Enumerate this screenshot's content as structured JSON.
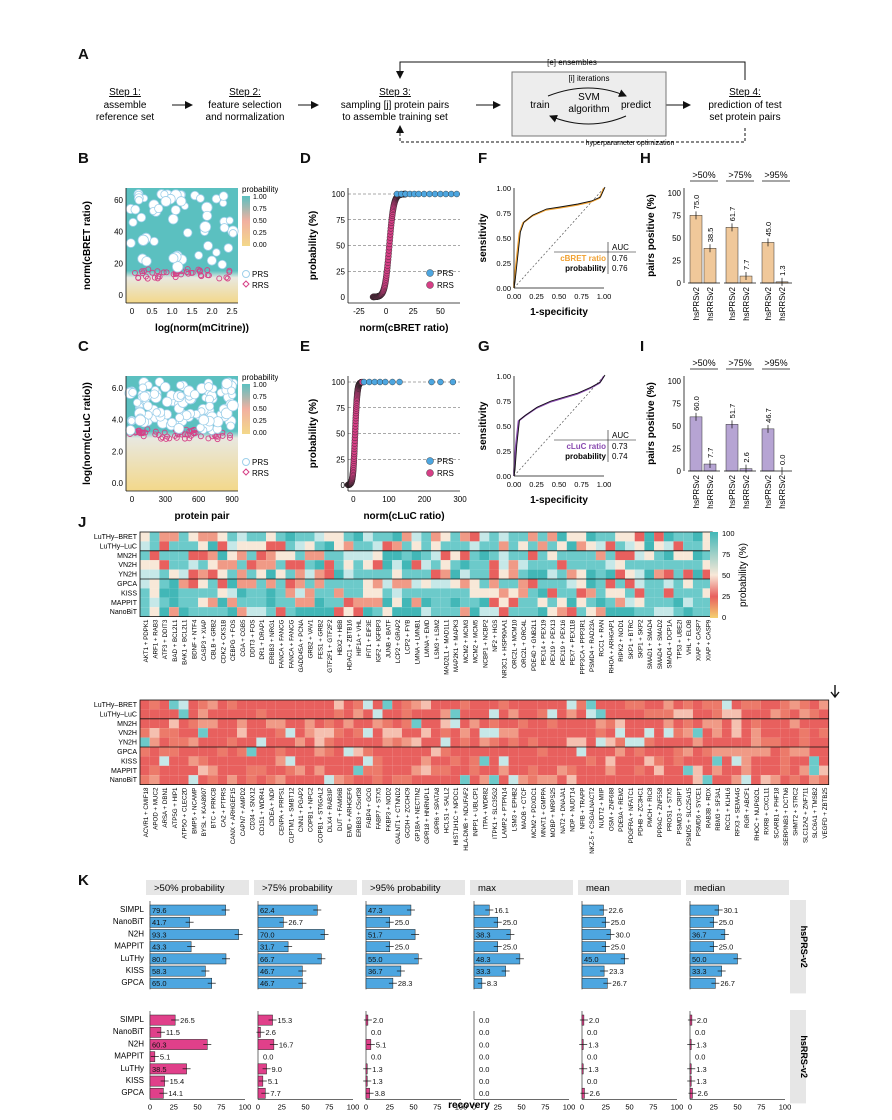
{
  "panels": {
    "A": "A",
    "B": "B",
    "C": "C",
    "D": "D",
    "E": "E",
    "F": "F",
    "G": "G",
    "H": "H",
    "I": "I",
    "J": "J",
    "K": "K"
  },
  "workflow": {
    "steps": [
      {
        "title": "Step 1:",
        "lines": [
          "assemble",
          "reference set"
        ]
      },
      {
        "title": "Step 2:",
        "lines": [
          "feature selection",
          "and normalization"
        ]
      },
      {
        "title": "Step 3:",
        "lines": [
          "sampling [j] protein pairs",
          "to assemble training set"
        ]
      },
      {
        "title": "Step 4:",
        "lines": [
          "prediction of test",
          "set protein pairs"
        ]
      }
    ],
    "ensembles": "[e] ensembles",
    "iterations": "[i] iterations",
    "svm": [
      "SVM",
      "algorithm"
    ],
    "train": "train",
    "predict": "predict",
    "hyper": "hyperparameter optimization"
  },
  "colors": {
    "prs": "#4da6e0",
    "rrs": "#d63f86",
    "cbret": "#f0c89a",
    "cluc": "#b6a4d3",
    "bar_k_prs": "#4da6e0",
    "bar_k_rrs": "#e0408a"
  },
  "chart_data": [
    {
      "id": "B",
      "type": "scatter",
      "xlabel": "log(norm(mCitrine))",
      "ylabel": "norm(cBRET ratio)",
      "xticks": [
        "0",
        "0.5",
        "1.0",
        "1.5",
        "2.0",
        "2.5"
      ],
      "yticks": [
        "0",
        "20",
        "40",
        "60"
      ],
      "legend_title": "probability",
      "legend_ticks": [
        "1.00",
        "0.75",
        "0.50",
        "0.25",
        "0.00"
      ],
      "legend": [
        "PRS",
        "RRS"
      ]
    },
    {
      "id": "C",
      "type": "scatter",
      "xlabel": "protein pair",
      "ylabel": "log(norm(cLuC ratio))",
      "xticks": [
        "0",
        "300",
        "600",
        "900"
      ],
      "yticks": [
        "0.0",
        "2.0",
        "4.0",
        "6.0"
      ],
      "legend_title": "probability",
      "legend_ticks": [
        "1.00",
        "0.75",
        "0.50",
        "0.25",
        "0.00"
      ],
      "legend": [
        "PRS",
        "RRS"
      ]
    },
    {
      "id": "D",
      "type": "scatter",
      "xlabel": "norm(cBRET ratio)",
      "ylabel": "probability (%)",
      "xticks": [
        "-25",
        "0",
        "25",
        "50"
      ],
      "yticks": [
        "0",
        "25",
        "50",
        "75",
        "100"
      ],
      "legend": [
        "PRS",
        "RRS"
      ]
    },
    {
      "id": "E",
      "type": "scatter",
      "xlabel": "norm(cLuC ratio)",
      "ylabel": "probability (%)",
      "xticks": [
        "0",
        "100",
        "200",
        "300"
      ],
      "yticks": [
        "0",
        "25",
        "50",
        "75",
        "100"
      ],
      "legend": [
        "PRS",
        "RRS"
      ]
    },
    {
      "id": "F",
      "type": "line",
      "xlabel": "1-specificity",
      "ylabel": "sensitivity",
      "xticks": [
        "0.00",
        "0.25",
        "0.50",
        "0.75",
        "1.00"
      ],
      "yticks": [
        "0.00",
        "0.25",
        "0.50",
        "0.75",
        "1.00"
      ],
      "auc_header": "AUC",
      "rows": [
        {
          "name": "cBRET ratio",
          "auc": "0.76"
        },
        {
          "name": "probability",
          "auc": "0.76"
        }
      ]
    },
    {
      "id": "G",
      "type": "line",
      "xlabel": "1-specificity",
      "ylabel": "sensitivity",
      "xticks": [
        "0.00",
        "0.25",
        "0.50",
        "0.75",
        "1.00"
      ],
      "yticks": [
        "0.00",
        "0.25",
        "0.50",
        "0.75",
        "1.00"
      ],
      "auc_header": "AUC",
      "rows": [
        {
          "name": "cLuC ratio",
          "auc": "0.73"
        },
        {
          "name": "probability",
          "auc": "0.74"
        }
      ]
    },
    {
      "id": "H",
      "type": "bar",
      "ylabel": "pairs positive (%)",
      "yticks": [
        "0",
        "25",
        "50",
        "75",
        "100"
      ],
      "groups": [
        {
          "label": ">50%",
          "values": [
            75.0,
            38.5
          ],
          "labels": [
            "75.0",
            "38.5"
          ]
        },
        {
          "label": ">75%",
          "values": [
            61.7,
            7.7
          ],
          "labels": [
            "61.7",
            "7.7"
          ]
        },
        {
          "label": ">95%",
          "values": [
            45.0,
            1.3
          ],
          "labels": [
            "45.0",
            "1.3"
          ]
        }
      ],
      "categories": [
        "hsPRSv2",
        "hsRRSv2"
      ]
    },
    {
      "id": "I",
      "type": "bar",
      "ylabel": "pairs positive (%)",
      "yticks": [
        "0",
        "25",
        "50",
        "75",
        "100"
      ],
      "groups": [
        {
          "label": ">50%",
          "values": [
            60.0,
            7.7
          ],
          "labels": [
            "60.0",
            "7.7"
          ]
        },
        {
          "label": ">75%",
          "values": [
            51.7,
            2.6
          ],
          "labels": [
            "51.7",
            "2.6"
          ]
        },
        {
          "label": ">95%",
          "values": [
            46.7,
            0.0
          ],
          "labels": [
            "46.7",
            "0.0"
          ]
        }
      ],
      "categories": [
        "hsPRSv2",
        "hsRRSv2"
      ]
    },
    {
      "id": "J",
      "type": "heatmap",
      "legend_title": "probability (%)",
      "legend_ticks": [
        "100",
        "75",
        "50",
        "25",
        "0"
      ],
      "rows": [
        "LuTHy–BRET",
        "LuTHy–LuC",
        "MN2H",
        "VN2H",
        "YN2H",
        "GPCA",
        "KISS",
        "MAPPIT",
        "NanoBiT"
      ],
      "columns_top": [
        "AKT1 + PDPK1",
        "ARF1 + RAB3",
        "ATF3 + DDIT3",
        "BAD + BCL2L1",
        "BAK1 + BCL2L1",
        "BDNF + NTF4",
        "CASP3 + XIAP",
        "CBLB + GRB2",
        "CDK2 + CKS1B",
        "CEBPG + FOS",
        "CGA + CGB5",
        "DDIT3 + FOS",
        "DR1 + DRAP1",
        "ERBB3 + NRG1",
        "FANCA + FANCG",
        "FANCA + FANCG",
        "GADD45A + PCNA",
        "GRB2 + VAV1",
        "FES1 + GRB2",
        "GTF2F1 + GTF2F2",
        "HBX2 + HBB",
        "HDAC1 + ZBTB16",
        "HIF1A + VHL",
        "IFIT1 + EIF3E",
        "IGF2 + IGFBP3",
        "JUNB + BATF",
        "LCP2 + GRAP2",
        "LCP2 + FYB",
        "LMNA + LMNB1",
        "LMNA + EMD",
        "LSM3 + LSM2",
        "MAD2L1 + MAD1L1",
        "MAP2K1 + MAPK3",
        "MCM2 + MCM3",
        "MCM2 + MCM5",
        "NCBP1 + NCBP2",
        "NF2 + HGS",
        "NR3C1 + HSP90AA1",
        "ORC2L + MCM10",
        "ORC2L + ORC4L",
        "PDE4D + GNB2L1",
        "PEX14 + PEX19",
        "PEX19 + PEX13",
        "PEX19 + PEX16",
        "PEX7 + PEX11B",
        "PPP3CA + PPP3R1",
        "PSMD4 + RAD23A",
        "RCC1 + RAN",
        "RHOA + ARHGAP1",
        "RIPK2 + NOD1",
        "SKP1 + BTRC",
        "SKP1 + SKP2",
        "SMAD1 + SMAD4",
        "SMAD4 + SMAD2",
        "SMAD4 + DCP1A",
        "TP53 + UBE2I",
        "VHL + ELOB",
        "XIAP + CASP7",
        "XIAP + CASP9"
      ],
      "columns_bottom": [
        "ACVR1 + CMIF18",
        "APOD + MUC2",
        "ARSA + DBN1",
        "ATP5G + HIP1",
        "ATP5O + CLEC2D",
        "BMP5 + NCAMP",
        "BYSL + KAA8907",
        "BTC + PRKCB",
        "CA2 + PTPRS",
        "CANX + ARHGEF15",
        "CAPN7 + AMPD2",
        "CD34 + SNX12",
        "CD151 + WDR41",
        "CIDEA + NDP",
        "CENPA + PRPS1",
        "CLPTM1 + SMBT12",
        "CNN1 + PGAP2",
        "COPB1 + NPC2",
        "COPB1 + ST6GAL2",
        "DLX4 + RAB3IP",
        "DUT + FAM96B",
        "EMD + ARHGEF6",
        "ERBB3 + C5orf38",
        "FABP4 + GCG",
        "FABP7 + STX5",
        "FKBP3 + NOD2",
        "GALNT1 + CTNND2",
        "GCDH + ZCCHC9",
        "GP1BA + NECTIN2",
        "GPR18 + HNRNPL1",
        "GPR6 + SPATA8",
        "HCLS1 + SALL2",
        "HIST1H1C + NPDC1",
        "HLA-DMB + NDUFAF2",
        "INPP1 + UBLCP1",
        "ITPA + WDR82",
        "ITPK1 + SLC35G2",
        "LAMP2 + PTPN14",
        "LSM3 + EPHB2",
        "MAOB + CTCF",
        "MCM2 + PDXDC1",
        "MNAT1 + GMPPA",
        "MOBP + MRPS25",
        "NAT2 + DNAJA1",
        "NDP + NUDT14",
        "NFIB + TRAPP",
        "NKZ-5 + CSGALNACT2",
        "NUDT2 + MIIP",
        "OSM + ZNF688",
        "PDE9A + REM2",
        "PDGFRA + NFATC1",
        "PDHB + ZC3HC1",
        "PMCH + RIC8",
        "PPPAC + ZNF558",
        "PROS1 + STX5",
        "PSMD3 + CRIPT",
        "PSMD5 + SLC25A15",
        "PSMD6 + SYCE1",
        "RAB3B + RDX",
        "RBM3 + SF3A1",
        "RCC1 + KLHL6",
        "RFX3 + SEMA4G",
        "RGR + ABCF1",
        "RHOC + NUP62CL",
        "RXRB + CXCL11",
        "SCARB1 + PHF18",
        "SERPINB3 + DCTN6",
        "SHMT2 + STRC2",
        "SLC12A2 + ZNF711",
        "SLC6A1 + TMSB2",
        "VEGFD + ZBTB25"
      ]
    },
    {
      "id": "K",
      "type": "bar",
      "xlabel": "recovery",
      "xticks": [
        "0",
        "25",
        "50",
        "75",
        "100"
      ],
      "columns": [
        ">50% probability",
        ">75% probability",
        ">95% probability",
        "max",
        "mean",
        "median"
      ],
      "groups": [
        {
          "name": "hsPRS-v2",
          "methods": [
            "SIMPL",
            "NanoBiT",
            "N2H",
            "MAPPIT",
            "LuTHy",
            "KISS",
            "GPCA"
          ],
          "values": [
            [
              79.6,
              62.4,
              47.3,
              16.1,
              22.6,
              30.1
            ],
            [
              41.7,
              26.7,
              25.0,
              25.0,
              25.0,
              25.0
            ],
            [
              93.3,
              70.0,
              51.7,
              38.3,
              30.0,
              36.7
            ],
            [
              43.3,
              31.7,
              25.0,
              25.0,
              25.0,
              25.0
            ],
            [
              80.0,
              66.7,
              55.0,
              48.3,
              45.0,
              50.0
            ],
            [
              58.3,
              46.7,
              36.7,
              33.3,
              23.3,
              33.3
            ],
            [
              65.0,
              46.7,
              28.3,
              8.3,
              26.7,
              26.7
            ]
          ],
          "labels": [
            [
              "79.6",
              "62.4",
              "47.3",
              "16.1",
              "22.6",
              "30.1"
            ],
            [
              "41.7",
              "26.7",
              "25.0",
              "25.0",
              "25.0",
              "25.0"
            ],
            [
              "93.3",
              "70.0",
              "51.7",
              "38.3",
              "30.0",
              "36.7"
            ],
            [
              "43.3",
              "31.7",
              "25.0",
              "25.0",
              "25.0",
              "25.0"
            ],
            [
              "80.0",
              "66.7",
              "55.0",
              "48.3",
              "45.0",
              "50.0"
            ],
            [
              "58.3",
              "46.7",
              "36.7",
              "33.3",
              "23.3",
              "33.3"
            ],
            [
              "65.0",
              "46.7",
              "28.3",
              "8.3",
              "26.7",
              "26.7"
            ]
          ]
        },
        {
          "name": "hsRRS-v2",
          "methods": [
            "SIMPL",
            "NanoBiT",
            "N2H",
            "MAPPIT",
            "LuTHy",
            "KISS",
            "GPCA"
          ],
          "values": [
            [
              26.5,
              15.3,
              2.0,
              0.0,
              2.0,
              2.0
            ],
            [
              11.5,
              2.6,
              0.0,
              0.0,
              0.0,
              0.0
            ],
            [
              60.3,
              16.7,
              5.1,
              0.0,
              1.3,
              1.3
            ],
            [
              5.1,
              0.0,
              0.0,
              0.0,
              0.0,
              0.0
            ],
            [
              38.5,
              9.0,
              1.3,
              0.0,
              1.3,
              1.3
            ],
            [
              15.4,
              5.1,
              1.3,
              0.0,
              0.0,
              1.3
            ],
            [
              14.1,
              7.7,
              3.8,
              0.0,
              2.6,
              2.6
            ]
          ],
          "labels": [
            [
              "26.5",
              "15.3",
              "2.0",
              "0.0",
              "2.0",
              "2.0"
            ],
            [
              "11.5",
              "2.6",
              "0.0",
              "0.0",
              "0.0",
              "0.0"
            ],
            [
              "60.3",
              "16.7",
              "5.1",
              "0.0",
              "1.3",
              "1.3"
            ],
            [
              "5.1",
              "0.0",
              "0.0",
              "0.0",
              "0.0",
              "0.0"
            ],
            [
              "38.5",
              "9.0",
              "1.3",
              "0.0",
              "1.3",
              "1.3"
            ],
            [
              "15.4",
              "5.1",
              "1.3",
              "0.0",
              "0.0",
              "1.3"
            ],
            [
              "14.1",
              "7.7",
              "3.8",
              "0.0",
              "2.6",
              "2.6"
            ]
          ]
        }
      ]
    }
  ]
}
